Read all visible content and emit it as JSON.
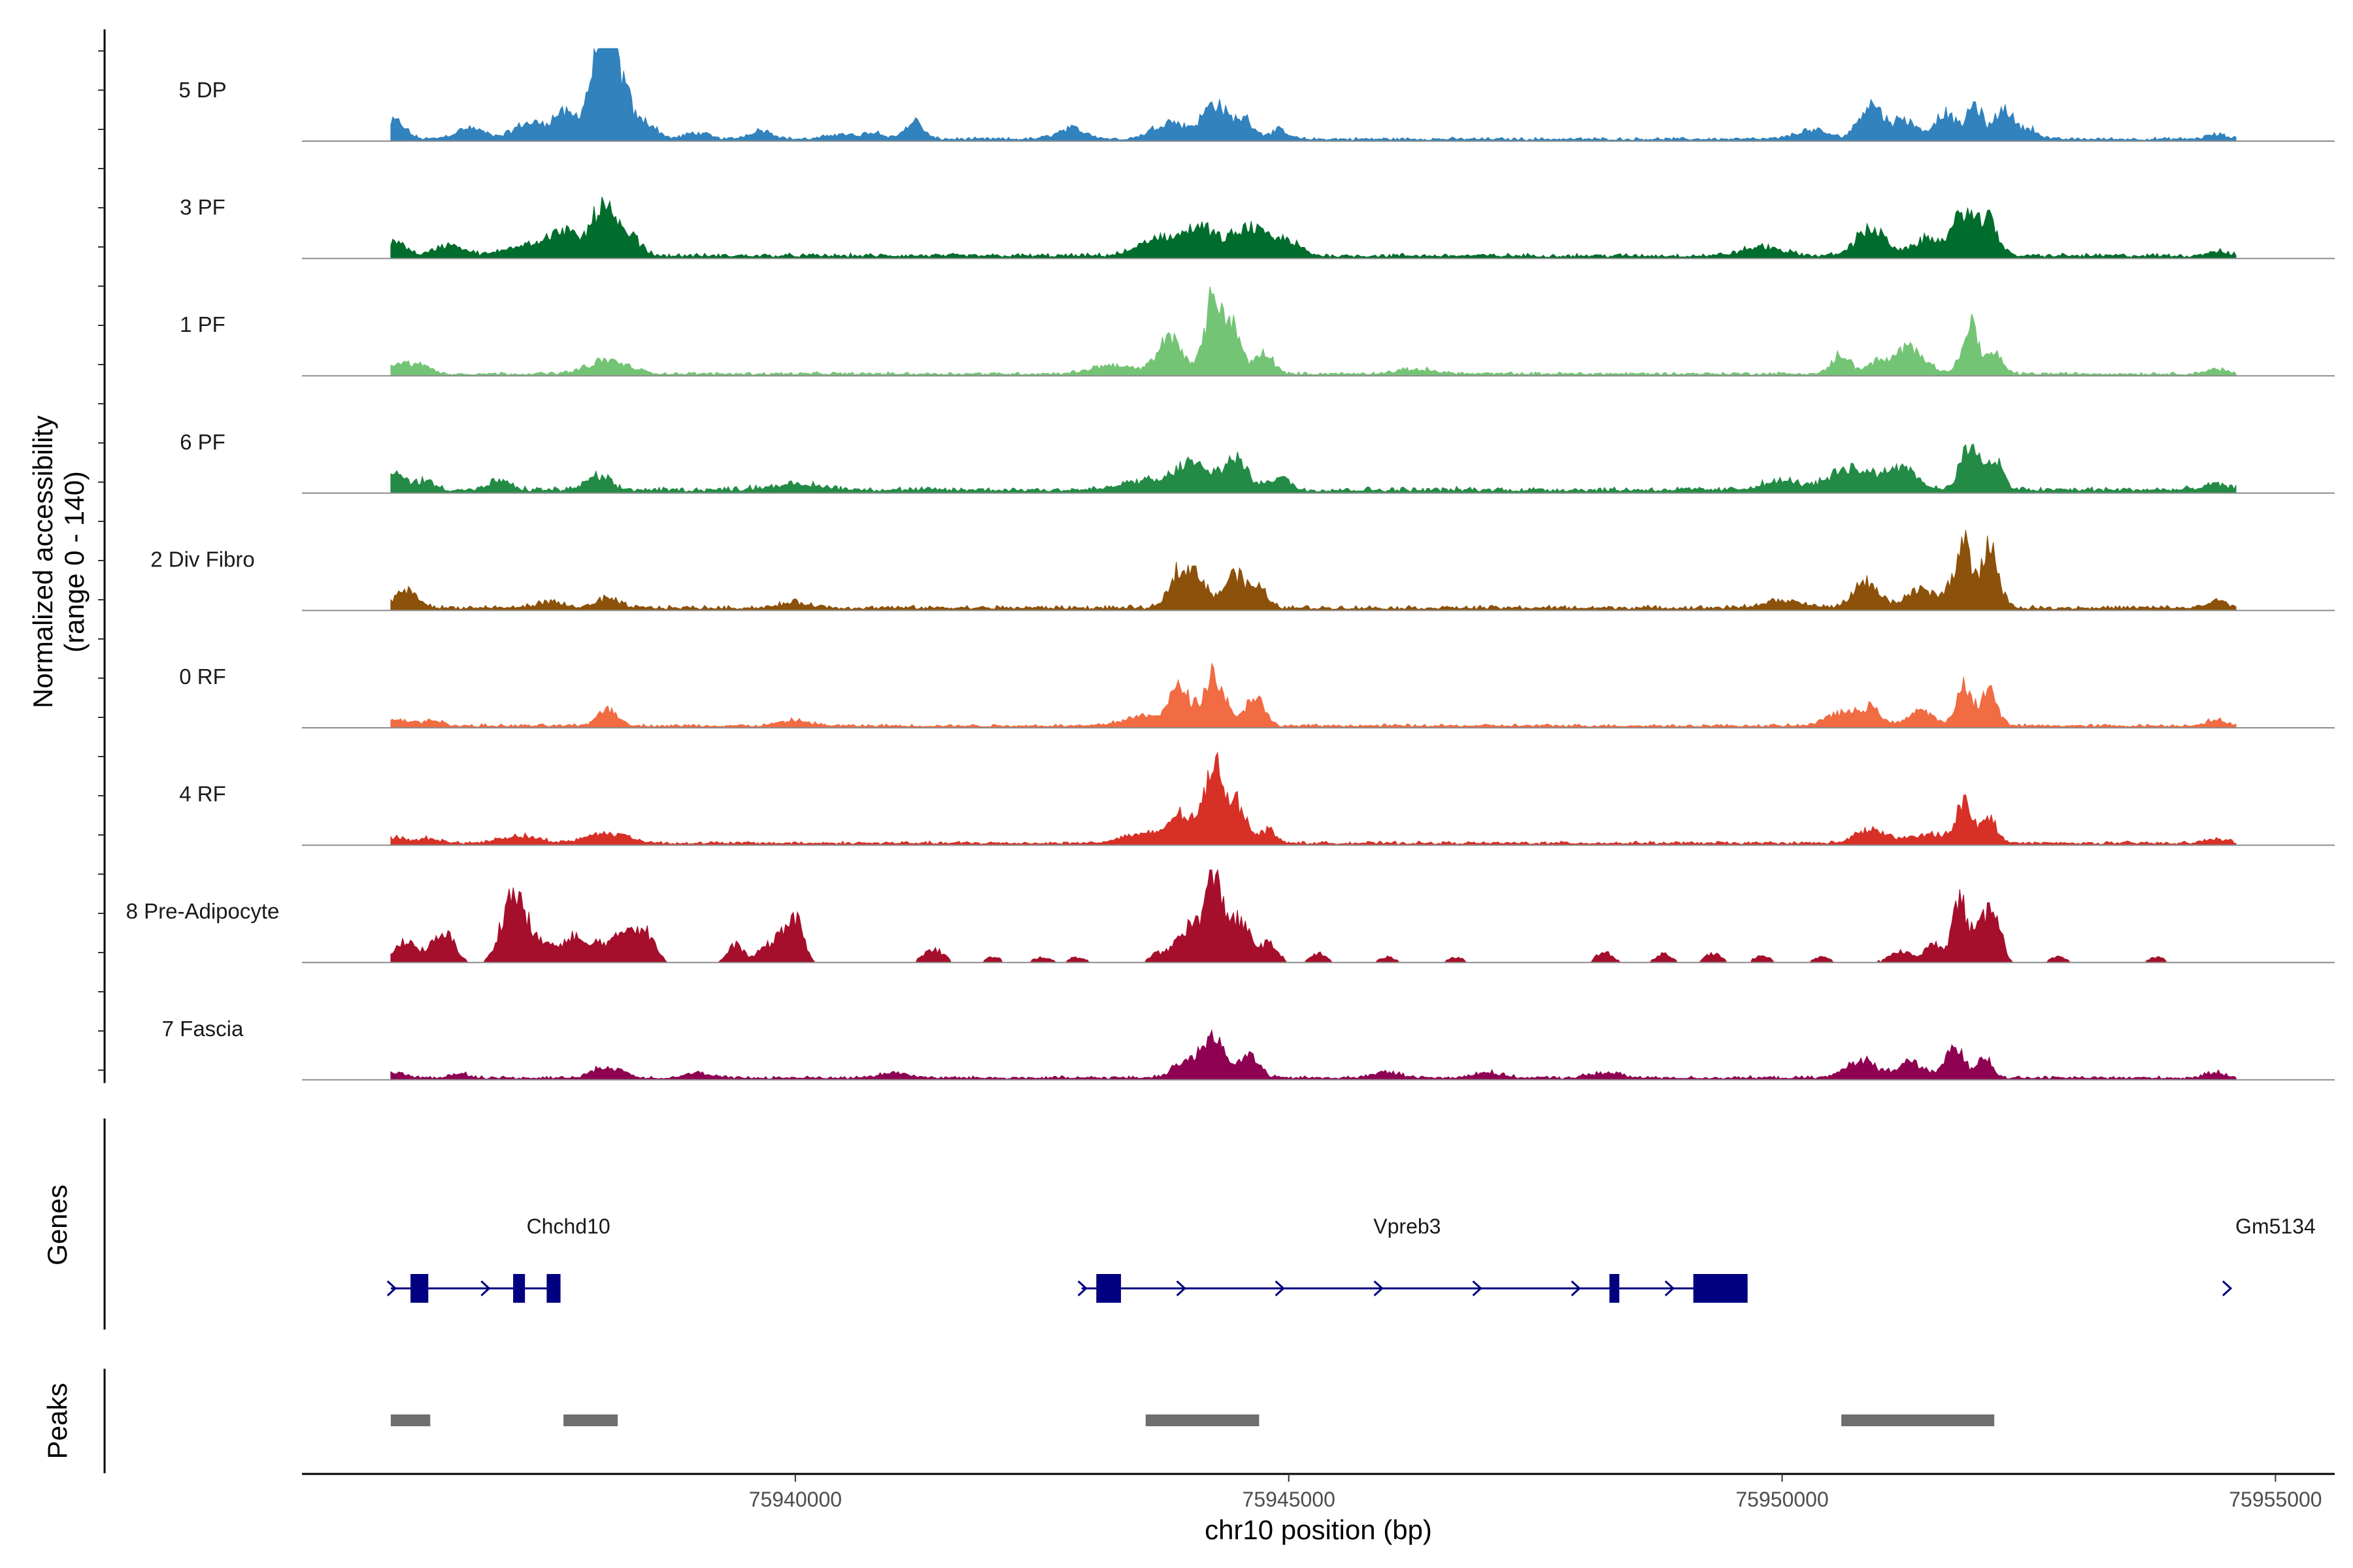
{
  "chart_data": {
    "type": "area",
    "title": "",
    "ylabel_line1": "Normalized accessibility",
    "ylabel_line2": "(range 0 - 140)",
    "xlabel": "chr10 position (bp)",
    "xlim": [
      75935000,
      75955600
    ],
    "ylim": [
      0,
      140
    ],
    "xticks": [
      75940000,
      75945000,
      75950000,
      75955000
    ],
    "xtick_labels": [
      "75940000",
      "75945000",
      "75950000",
      "75955000"
    ],
    "genes_label": "Genes",
    "peaks_label": "Peaks",
    "region": [
      75935900,
      75954600
    ],
    "series": [
      {
        "name": "5 DP",
        "color": "#3182bd",
        "background": 0.03,
        "peaks": [
          [
            75935950,
            0.2,
            100
          ],
          [
            75936700,
            0.12,
            150
          ],
          [
            75937300,
            0.18,
            150
          ],
          [
            75937650,
            0.28,
            120
          ],
          [
            75938000,
            0.8,
            110
          ],
          [
            75938100,
            0.92,
            70
          ],
          [
            75938250,
            0.55,
            90
          ],
          [
            75938500,
            0.18,
            100
          ],
          [
            75939000,
            0.07,
            120
          ],
          [
            75939650,
            0.1,
            120
          ],
          [
            75940450,
            0.06,
            120
          ],
          [
            75940800,
            0.08,
            100
          ],
          [
            75941200,
            0.2,
            90
          ],
          [
            75942800,
            0.12,
            150
          ],
          [
            75943800,
            0.2,
            170
          ],
          [
            75944250,
            0.4,
            120
          ],
          [
            75944550,
            0.22,
            100
          ],
          [
            75944900,
            0.1,
            90
          ],
          [
            75950300,
            0.1,
            160
          ],
          [
            75950900,
            0.4,
            120
          ],
          [
            75951250,
            0.22,
            120
          ],
          [
            75951650,
            0.3,
            100
          ],
          [
            75951950,
            0.38,
            80
          ],
          [
            75952250,
            0.35,
            90
          ],
          [
            75952500,
            0.12,
            90
          ],
          [
            75954400,
            0.05,
            100
          ]
        ]
      },
      {
        "name": "3 PF",
        "color": "#006d2c",
        "background": 0.04,
        "peaks": [
          [
            75935950,
            0.18,
            100
          ],
          [
            75936500,
            0.12,
            150
          ],
          [
            75937300,
            0.15,
            200
          ],
          [
            75937650,
            0.25,
            120
          ],
          [
            75938050,
            0.55,
            130
          ],
          [
            75938350,
            0.18,
            100
          ],
          [
            75943700,
            0.2,
            200
          ],
          [
            75944100,
            0.3,
            150
          ],
          [
            75944600,
            0.32,
            180
          ],
          [
            75945000,
            0.15,
            120
          ],
          [
            75949800,
            0.1,
            200
          ],
          [
            75950900,
            0.3,
            150
          ],
          [
            75951500,
            0.2,
            150
          ],
          [
            75951850,
            0.5,
            100
          ],
          [
            75952100,
            0.4,
            90
          ],
          [
            75954400,
            0.05,
            100
          ]
        ]
      },
      {
        "name": "1 PF",
        "color": "#74c476",
        "background": 0.03,
        "peaks": [
          [
            75935950,
            0.12,
            120
          ],
          [
            75936200,
            0.1,
            100
          ],
          [
            75938100,
            0.15,
            200
          ],
          [
            75943200,
            0.1,
            200
          ],
          [
            75943800,
            0.4,
            130
          ],
          [
            75944250,
            0.9,
            90
          ],
          [
            75944450,
            0.45,
            80
          ],
          [
            75944750,
            0.25,
            90
          ],
          [
            75946300,
            0.05,
            200
          ],
          [
            75950600,
            0.22,
            90
          ],
          [
            75950950,
            0.12,
            100
          ],
          [
            75951300,
            0.3,
            150
          ],
          [
            75951900,
            0.55,
            80
          ],
          [
            75952150,
            0.25,
            80
          ],
          [
            75954400,
            0.05,
            100
          ]
        ]
      },
      {
        "name": "6 PF",
        "color": "#238b45",
        "background": 0.05,
        "peaks": [
          [
            75935950,
            0.18,
            100
          ],
          [
            75936250,
            0.1,
            100
          ],
          [
            75937000,
            0.1,
            100
          ],
          [
            75938000,
            0.15,
            120
          ],
          [
            75940000,
            0.06,
            300
          ],
          [
            75943500,
            0.1,
            200
          ],
          [
            75944000,
            0.3,
            160
          ],
          [
            75944450,
            0.35,
            130
          ],
          [
            75944900,
            0.15,
            100
          ],
          [
            75950000,
            0.1,
            200
          ],
          [
            75950700,
            0.25,
            200
          ],
          [
            75951200,
            0.28,
            150
          ],
          [
            75951900,
            0.45,
            100
          ],
          [
            75952150,
            0.35,
            80
          ],
          [
            75954400,
            0.06,
            120
          ]
        ]
      },
      {
        "name": "2 Div Fibro",
        "color": "#8c510a",
        "background": 0.04,
        "peaks": [
          [
            75936050,
            0.2,
            120
          ],
          [
            75937500,
            0.06,
            150
          ],
          [
            75938100,
            0.1,
            120
          ],
          [
            75940000,
            0.06,
            150
          ],
          [
            75943900,
            0.45,
            100
          ],
          [
            75944100,
            0.3,
            90
          ],
          [
            75944450,
            0.38,
            110
          ],
          [
            75944700,
            0.2,
            90
          ],
          [
            75950000,
            0.08,
            200
          ],
          [
            75950850,
            0.28,
            130
          ],
          [
            75951400,
            0.2,
            150
          ],
          [
            75951750,
            0.28,
            90
          ],
          [
            75951850,
            0.6,
            60
          ],
          [
            75952100,
            0.7,
            90
          ],
          [
            75954400,
            0.08,
            90
          ]
        ]
      },
      {
        "name": "0 RF",
        "color": "#f16b43",
        "background": 0.03,
        "peaks": [
          [
            75935950,
            0.08,
            100
          ],
          [
            75936300,
            0.06,
            120
          ],
          [
            75938100,
            0.2,
            100
          ],
          [
            75940000,
            0.06,
            150
          ],
          [
            75943500,
            0.1,
            200
          ],
          [
            75943900,
            0.4,
            120
          ],
          [
            75944250,
            0.58,
            100
          ],
          [
            75944650,
            0.35,
            90
          ],
          [
            75950600,
            0.15,
            150
          ],
          [
            75950900,
            0.2,
            100
          ],
          [
            75951400,
            0.18,
            120
          ],
          [
            75951850,
            0.45,
            80
          ],
          [
            75952100,
            0.4,
            80
          ],
          [
            75954400,
            0.06,
            120
          ]
        ]
      },
      {
        "name": "4 RF",
        "color": "#d73027",
        "background": 0.03,
        "peaks": [
          [
            75935950,
            0.06,
            100
          ],
          [
            75936300,
            0.06,
            100
          ],
          [
            75937200,
            0.08,
            200
          ],
          [
            75938100,
            0.12,
            200
          ],
          [
            75943500,
            0.1,
            200
          ],
          [
            75943900,
            0.32,
            120
          ],
          [
            75944250,
            0.95,
            100
          ],
          [
            75944500,
            0.4,
            90
          ],
          [
            75944800,
            0.15,
            80
          ],
          [
            75950900,
            0.15,
            150
          ],
          [
            75951500,
            0.1,
            200
          ],
          [
            75951850,
            0.45,
            80
          ],
          [
            75952100,
            0.28,
            80
          ],
          [
            75954400,
            0.05,
            100
          ]
        ]
      },
      {
        "name": "8 Pre-Adipocyte",
        "color": "#a50f2c",
        "background": 0.0,
        "peaks": [
          [
            75936050,
            0.25,
            100
          ],
          [
            75936350,
            0.2,
            100
          ],
          [
            75936500,
            0.22,
            80
          ],
          [
            75937100,
            0.6,
            100
          ],
          [
            75937250,
            0.4,
            100
          ],
          [
            75937500,
            0.2,
            100
          ],
          [
            75937750,
            0.3,
            80
          ],
          [
            75938000,
            0.22,
            100
          ],
          [
            75938300,
            0.38,
            120
          ],
          [
            75938500,
            0.25,
            90
          ],
          [
            75939400,
            0.2,
            80
          ],
          [
            75939700,
            0.18,
            80
          ],
          [
            75940000,
            0.48,
            80
          ],
          [
            75939850,
            0.25,
            60
          ],
          [
            75941400,
            0.15,
            100
          ],
          [
            75942000,
            0.06,
            80
          ],
          [
            75942500,
            0.06,
            80
          ],
          [
            75942850,
            0.06,
            80
          ],
          [
            75943650,
            0.08,
            60
          ],
          [
            75944000,
            0.4,
            150
          ],
          [
            75944250,
            0.85,
            90
          ],
          [
            75944500,
            0.45,
            110
          ],
          [
            75944800,
            0.2,
            90
          ],
          [
            75945300,
            0.1,
            80
          ],
          [
            75946000,
            0.06,
            80
          ],
          [
            75946700,
            0.06,
            80
          ],
          [
            75948200,
            0.12,
            80
          ],
          [
            75948800,
            0.1,
            80
          ],
          [
            75949300,
            0.1,
            80
          ],
          [
            75949800,
            0.08,
            80
          ],
          [
            75950400,
            0.06,
            80
          ],
          [
            75951200,
            0.12,
            120
          ],
          [
            75951550,
            0.2,
            100
          ],
          [
            75951800,
            0.7,
            70
          ],
          [
            75952000,
            0.35,
            80
          ],
          [
            75952150,
            0.6,
            70
          ],
          [
            75952800,
            0.06,
            80
          ],
          [
            75953800,
            0.06,
            80
          ]
        ]
      },
      {
        "name": "7 Fascia",
        "color": "#8e0152",
        "background": 0.03,
        "peaks": [
          [
            75935950,
            0.06,
            100
          ],
          [
            75936600,
            0.05,
            100
          ],
          [
            75938100,
            0.12,
            150
          ],
          [
            75939000,
            0.06,
            120
          ],
          [
            75941000,
            0.06,
            150
          ],
          [
            75944000,
            0.2,
            150
          ],
          [
            75944250,
            0.45,
            100
          ],
          [
            75944600,
            0.25,
            100
          ],
          [
            75946000,
            0.06,
            150
          ],
          [
            75947000,
            0.06,
            150
          ],
          [
            75948200,
            0.06,
            150
          ],
          [
            75950800,
            0.2,
            150
          ],
          [
            75951300,
            0.18,
            130
          ],
          [
            75951750,
            0.35,
            90
          ],
          [
            75952050,
            0.25,
            80
          ],
          [
            75954400,
            0.06,
            100
          ]
        ]
      }
    ],
    "genes": [
      {
        "name": "Chchd10",
        "label_x": 75937700,
        "start": 75935900,
        "end": 75937600,
        "exons": [
          [
            75936100,
            75936280
          ],
          [
            75937140,
            75937260
          ],
          [
            75937480,
            75937620
          ]
        ],
        "arrows": [
          75935900,
          75936850
        ]
      },
      {
        "name": "Vpreb3",
        "label_x": 75946200,
        "start": 75942900,
        "end": 75949650,
        "exons": [
          [
            75943050,
            75943300
          ],
          [
            75948250,
            75948350
          ],
          [
            75949100,
            75949650
          ]
        ],
        "arrows": [
          75942900,
          75943900,
          75944900,
          75945900,
          75946900,
          75947900,
          75948850
        ]
      },
      {
        "name": "Gm5134",
        "label_x": 75955000,
        "start": 75954500,
        "end": 75954600,
        "exons": [],
        "arrows": [
          75954500
        ]
      }
    ],
    "peaks_track": [
      [
        75935900,
        75936300
      ],
      [
        75937650,
        75938200
      ],
      [
        75943550,
        75944700
      ],
      [
        75950600,
        75952150
      ]
    ]
  }
}
